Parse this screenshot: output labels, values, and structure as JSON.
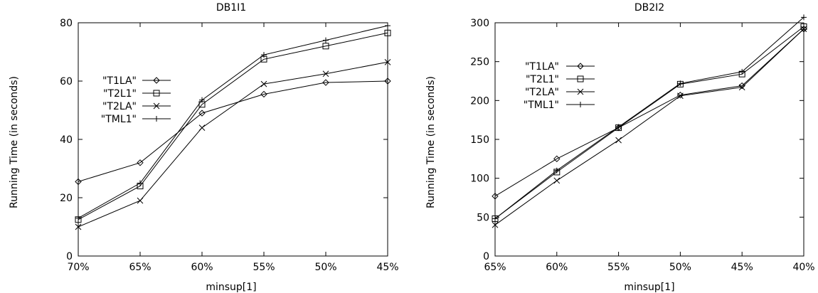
{
  "chart_data": [
    {
      "type": "line",
      "title": "DB1I1",
      "xlabel": "minsup[1]",
      "ylabel": "Running Time (in seconds)",
      "categories": [
        "70%",
        "65%",
        "60%",
        "55%",
        "50%",
        "45%"
      ],
      "ylim": [
        0,
        80
      ],
      "yticks": [
        0,
        20,
        40,
        60,
        80
      ],
      "legend_position": "left",
      "series": [
        {
          "name": "\"T1LA\"",
          "marker": "diamond",
          "values": [
            25.5,
            32,
            49,
            55.5,
            59.5,
            60
          ]
        },
        {
          "name": "\"T2L1\"",
          "marker": "square",
          "values": [
            12.5,
            24,
            52,
            67.5,
            72,
            76.5
          ]
        },
        {
          "name": "\"T2LA\"",
          "marker": "cross",
          "values": [
            10,
            19,
            44,
            59,
            62.5,
            66.5
          ]
        },
        {
          "name": "\"TML1\"",
          "marker": "plus",
          "values": [
            13,
            25,
            53.5,
            69,
            74,
            79
          ]
        }
      ]
    },
    {
      "type": "line",
      "title": "DB2I2",
      "xlabel": "minsup[1]",
      "ylabel": "Running Time (in seconds)",
      "categories": [
        "65%",
        "60%",
        "55%",
        "50%",
        "45%",
        "40%"
      ],
      "ylim": [
        0,
        300
      ],
      "yticks": [
        0,
        50,
        100,
        150,
        200,
        250,
        300
      ],
      "legend_position": "top-left",
      "series": [
        {
          "name": "\"T1LA\"",
          "marker": "diamond",
          "values": [
            77,
            125,
            165,
            207,
            219,
            292
          ]
        },
        {
          "name": "\"T2L1\"",
          "marker": "square",
          "values": [
            48,
            108,
            165,
            221,
            234,
            295
          ]
        },
        {
          "name": "\"T2LA\"",
          "marker": "cross",
          "values": [
            40,
            97,
            149,
            206,
            217,
            292
          ]
        },
        {
          "name": "\"TML1\"",
          "marker": "plus",
          "values": [
            48,
            110,
            166,
            222,
            237,
            307
          ]
        }
      ]
    }
  ]
}
